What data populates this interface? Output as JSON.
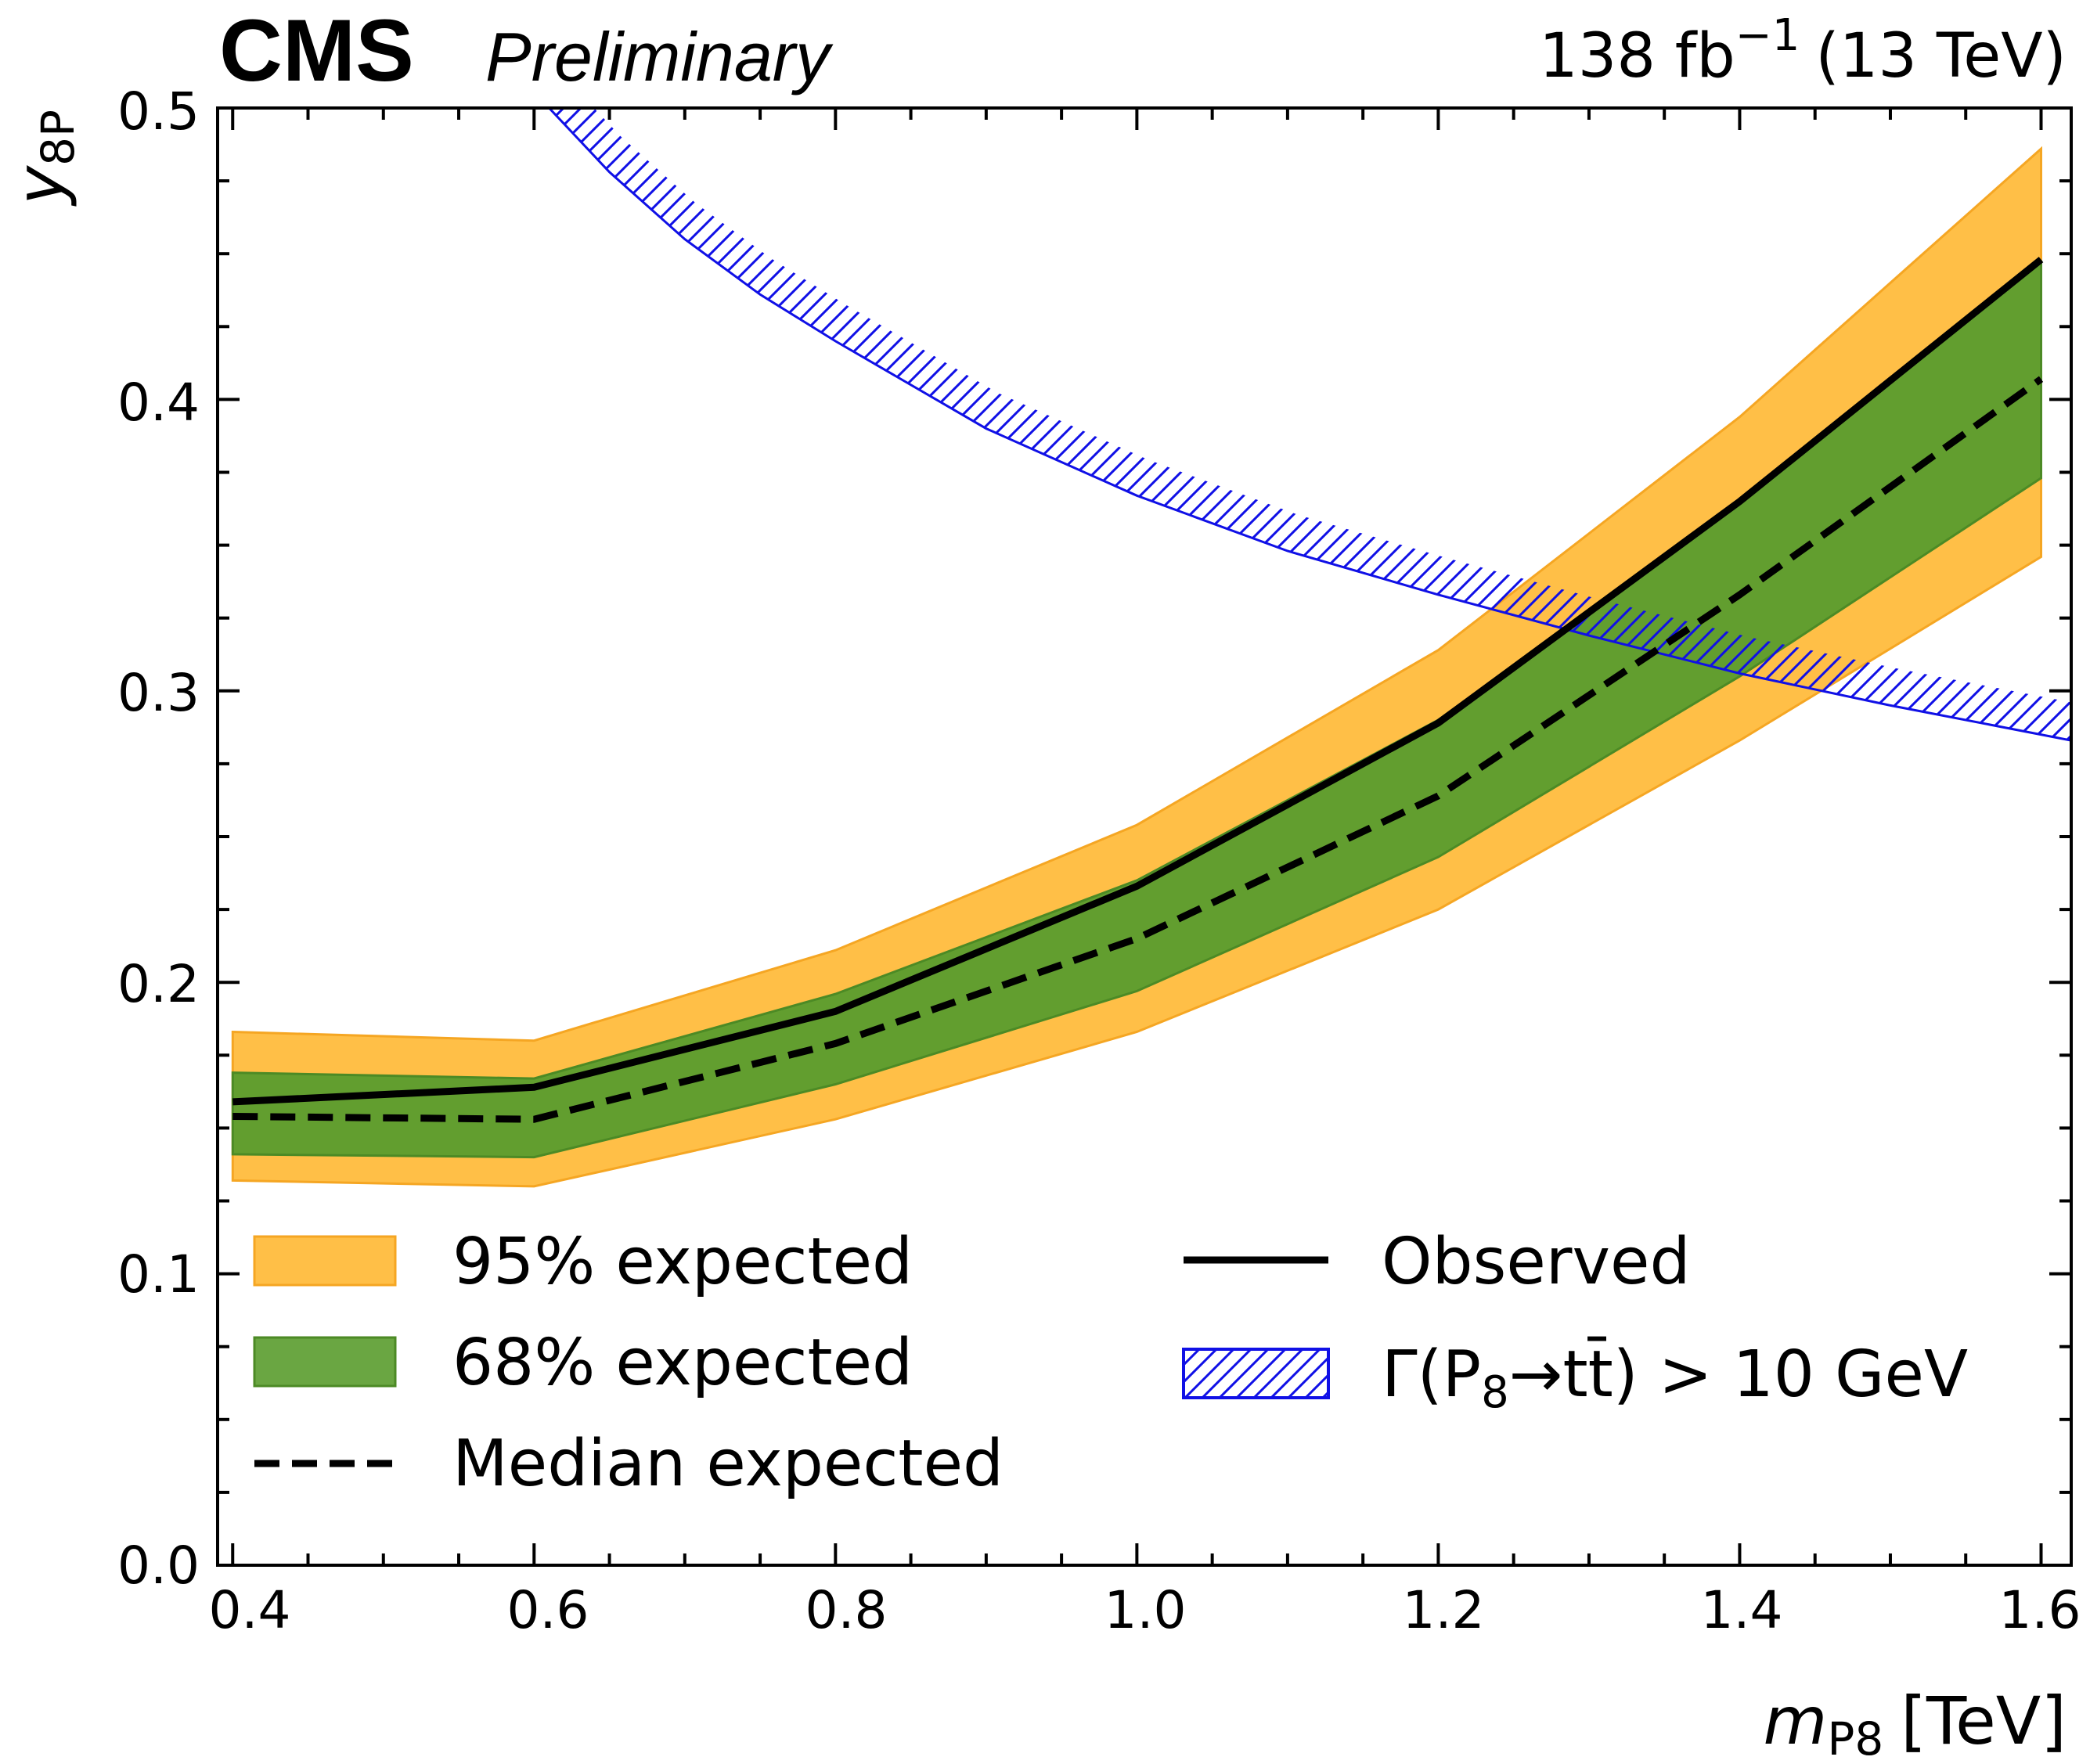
{
  "header": {
    "experiment": "CMS",
    "status": "Preliminary",
    "lumi_value": "138 fb",
    "lumi_exp": "−1",
    "energy": "(13 TeV)"
  },
  "chart_data": {
    "type": "line",
    "title": "",
    "xlabel_main": "m",
    "xlabel_sub": "P8",
    "xlabel_unit": "[TeV]",
    "ylabel_main": "y",
    "ylabel_sub": "8P",
    "xlim": [
      0.39,
      1.62
    ],
    "ylim": [
      0.0,
      0.5
    ],
    "xticks": [
      0.4,
      0.6,
      0.8,
      1.0,
      1.2,
      1.4,
      1.6
    ],
    "xtick_labels": [
      "0.4",
      "0.6",
      "0.8",
      "1.0",
      "1.2",
      "1.4",
      "1.6"
    ],
    "yticks": [
      0.0,
      0.1,
      0.2,
      0.3,
      0.4,
      0.5
    ],
    "ytick_labels": [
      "0.0",
      "0.1",
      "0.2",
      "0.3",
      "0.4",
      "0.5"
    ],
    "x": [
      0.4,
      0.6,
      0.8,
      1.0,
      1.2,
      1.4,
      1.6
    ],
    "series": [
      {
        "name": "95% expected lower",
        "values": [
          0.132,
          0.13,
          0.153,
          0.183,
          0.225,
          0.283,
          0.346
        ]
      },
      {
        "name": "95% expected upper",
        "values": [
          0.183,
          0.18,
          0.211,
          0.254,
          0.314,
          0.394,
          0.486
        ]
      },
      {
        "name": "68% expected lower",
        "values": [
          0.141,
          0.14,
          0.165,
          0.197,
          0.243,
          0.305,
          0.373
        ]
      },
      {
        "name": "68% expected upper",
        "values": [
          0.169,
          0.167,
          0.196,
          0.235,
          0.29,
          0.364,
          0.447
        ]
      },
      {
        "name": "Median expected",
        "values": [
          0.154,
          0.153,
          0.179,
          0.215,
          0.264,
          0.333,
          0.407
        ]
      },
      {
        "name": "Observed",
        "values": [
          0.159,
          0.164,
          0.19,
          0.233,
          0.289,
          0.365,
          0.448
        ]
      }
    ],
    "width_boundary": {
      "name": "Γ(P8→tt̄) > 10 GeV",
      "x": [
        0.61,
        0.65,
        0.7,
        0.75,
        0.8,
        0.9,
        1.0,
        1.1,
        1.2,
        1.3,
        1.4,
        1.5,
        1.62
      ],
      "values": [
        0.5,
        0.478,
        0.455,
        0.436,
        0.42,
        0.39,
        0.367,
        0.348,
        0.333,
        0.319,
        0.306,
        0.295,
        0.283
      ]
    },
    "colors": {
      "band95": "#ffb833",
      "band68": "#5a9c2e",
      "observed": "#000000",
      "median": "#000000",
      "hatch": "#1010e6"
    },
    "legend": {
      "placement": "lower-left",
      "entries": [
        "95% expected",
        "68% expected",
        "Median expected",
        "Observed"
      ],
      "hatch_prefix": "Γ(P",
      "hatch_sub": "8",
      "hatch_mid": "→tt̄) > 10 GeV"
    }
  }
}
